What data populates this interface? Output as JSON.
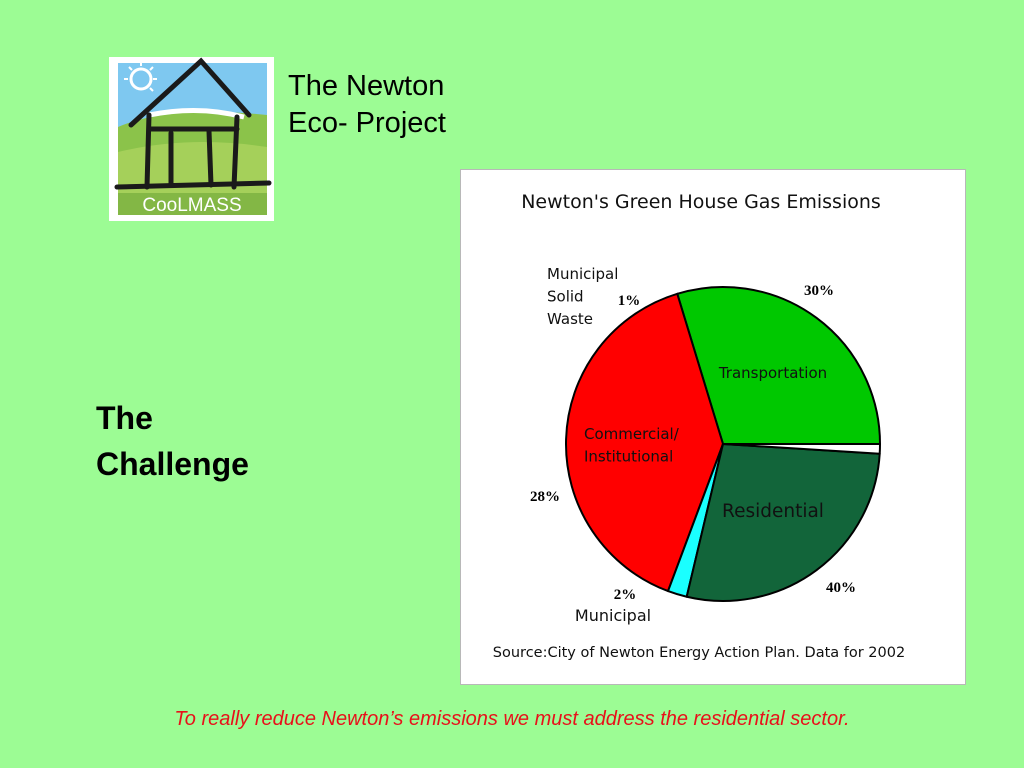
{
  "logo": {
    "text": "CooLMASS"
  },
  "project_title": {
    "line1": "The Newton",
    "line2": "Eco- Project"
  },
  "section_heading": {
    "line1": "The",
    "line2": "Challenge"
  },
  "chart_data": {
    "type": "pie",
    "title": "Newton's Green House Gas Emissions",
    "source": "Source:City of Newton Energy Action Plan. Data for 2002",
    "slices": [
      {
        "label": "Transportation",
        "value": 30,
        "display": "30%",
        "color": "#00c800"
      },
      {
        "label": "Residential",
        "value": 40,
        "display": "40%",
        "color": "#ff0000"
      },
      {
        "label": "Municipal",
        "value": 2,
        "display": "2%",
        "color": "#1affff"
      },
      {
        "label": "Commercial/\nInstitutional",
        "value": 28,
        "display": "28%",
        "color": "#12653a"
      },
      {
        "label": "Municipal\nSolid\nWaste",
        "value": 1,
        "display": "1%",
        "color": "#ffffff"
      }
    ]
  },
  "footer": {
    "text": "To really reduce Newton’s emissions we must address the residential sector."
  },
  "colors": {
    "background": "#9cfc94",
    "footer_text": "#e8101a"
  }
}
